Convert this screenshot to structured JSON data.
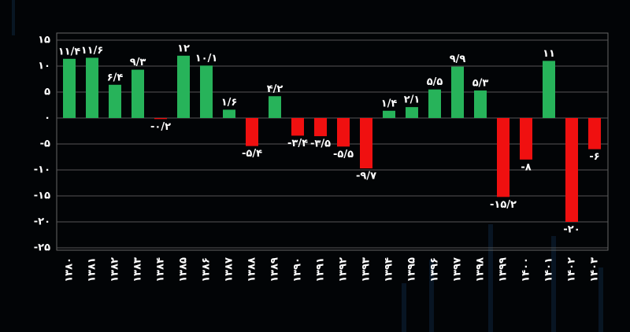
{
  "chart_data": {
    "type": "bar",
    "categories": [
      "۱۳۸۰",
      "۱۳۸۱",
      "۱۳۸۲",
      "۱۳۸۳",
      "۱۳۸۴",
      "۱۳۸۵",
      "۱۳۸۶",
      "۱۳۸۷",
      "۱۳۸۸",
      "۱۳۸۹",
      "۱۳۹۰",
      "۱۳۹۱",
      "۱۳۹۲",
      "۱۳۹۳",
      "۱۳۹۴",
      "۱۳۹۵",
      "۱۳۹۶",
      "۱۳۹۷",
      "۱۳۹۸",
      "۱۳۹۹",
      "۱۴۰۰",
      "۱۴۰۱",
      "۱۴۰۲",
      "۱۴۰۳"
    ],
    "values": [
      11.4,
      11.6,
      6.4,
      9.3,
      -0.2,
      12,
      10.1,
      1.6,
      -5.4,
      4.2,
      -3.4,
      -3.5,
      -5.5,
      -9.7,
      1.4,
      2.1,
      5.5,
      9.9,
      5.3,
      -15.2,
      -8,
      11,
      -20,
      -6
    ],
    "value_labels": [
      "۱۱/۴",
      "۱۱/۶",
      "۶/۴",
      "۹/۳",
      "-۰/۲",
      "۱۲",
      "۱۰/۱",
      "۱/۶",
      "-۵/۴",
      "۴/۲",
      "-۳/۴",
      "-۳/۵",
      "-۵/۵",
      "-۹/۷",
      "۱/۴",
      "۲/۱",
      "۵/۵",
      "۹/۹",
      "۵/۳",
      "-۱۵/۲",
      "-۸",
      "۱۱",
      "-۲۰",
      "-۶"
    ],
    "colors": {
      "positive": "#27b35a",
      "negative": "#f01010"
    },
    "ylim": [
      -25,
      15
    ],
    "yticks": [
      {
        "value": 15,
        "label": "۱۵"
      },
      {
        "value": 10,
        "label": "۱۰"
      },
      {
        "value": 5,
        "label": "۵"
      },
      {
        "value": 0,
        "label": "۰"
      },
      {
        "value": -5,
        "label": "-۵"
      },
      {
        "value": -10,
        "label": "-۱۰"
      },
      {
        "value": -15,
        "label": "-۱۵"
      },
      {
        "value": -20,
        "label": "-۲۰"
      },
      {
        "value": -25,
        "label": "-۲۵"
      }
    ],
    "grid": true
  }
}
